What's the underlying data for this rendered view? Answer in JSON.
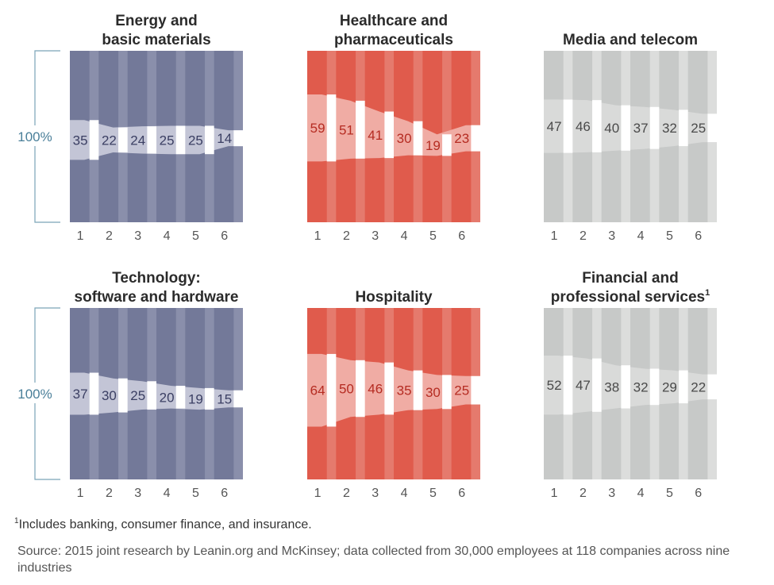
{
  "y_label": "100%",
  "footnote": {
    "marker": "1",
    "text": "Includes banking, consumer finance, and insurance."
  },
  "source": "Source: 2015 joint research by Leanin.org and McKinsey; data collected from 30,000 employees at 118 companies across nine industries",
  "colors": {
    "blue": {
      "base": "#737999",
      "stripe": "#8a8fab",
      "band": "#c3c5d6",
      "text": "#3b3f63"
    },
    "red": {
      "base": "#e05b4c",
      "stripe": "#e57a6d",
      "band": "#f0aca4",
      "text": "#b52c22"
    },
    "gray": {
      "base": "#c7c9c8",
      "stripe": "#dcdddc",
      "band": "#d9dad9",
      "text": "#4a4a4a"
    }
  },
  "chart_data": [
    {
      "type": "area",
      "title_lines": [
        "Energy and",
        "basic materials"
      ],
      "title_sup": "",
      "color": "blue",
      "x": [
        "1",
        "2",
        "3",
        "4",
        "5",
        "6"
      ],
      "values": [
        35,
        22,
        24,
        25,
        25,
        14
      ]
    },
    {
      "type": "area",
      "title_lines": [
        "Healthcare and",
        "pharmaceuticals"
      ],
      "title_sup": "",
      "color": "red",
      "x": [
        "1",
        "2",
        "3",
        "4",
        "5",
        "6"
      ],
      "values": [
        59,
        51,
        41,
        30,
        19,
        23
      ]
    },
    {
      "type": "area",
      "title_lines": [
        "Media and telecom"
      ],
      "title_sup": "",
      "color": "gray",
      "x": [
        "1",
        "2",
        "3",
        "4",
        "5",
        "6"
      ],
      "values": [
        47,
        46,
        40,
        37,
        32,
        25
      ]
    },
    {
      "type": "area",
      "title_lines": [
        "Technology:",
        "software and hardware"
      ],
      "title_sup": "",
      "color": "blue",
      "x": [
        "1",
        "2",
        "3",
        "4",
        "5",
        "6"
      ],
      "values": [
        37,
        30,
        25,
        20,
        19,
        15
      ]
    },
    {
      "type": "area",
      "title_lines": [
        "Hospitality"
      ],
      "title_sup": "",
      "color": "red",
      "x": [
        "1",
        "2",
        "3",
        "4",
        "5",
        "6"
      ],
      "values": [
        64,
        50,
        46,
        35,
        30,
        25
      ]
    },
    {
      "type": "area",
      "title_lines": [
        "Financial and",
        "professional services"
      ],
      "title_sup": "1",
      "color": "gray",
      "x": [
        "1",
        "2",
        "3",
        "4",
        "5",
        "6"
      ],
      "values": [
        52,
        47,
        38,
        32,
        29,
        22
      ]
    }
  ]
}
